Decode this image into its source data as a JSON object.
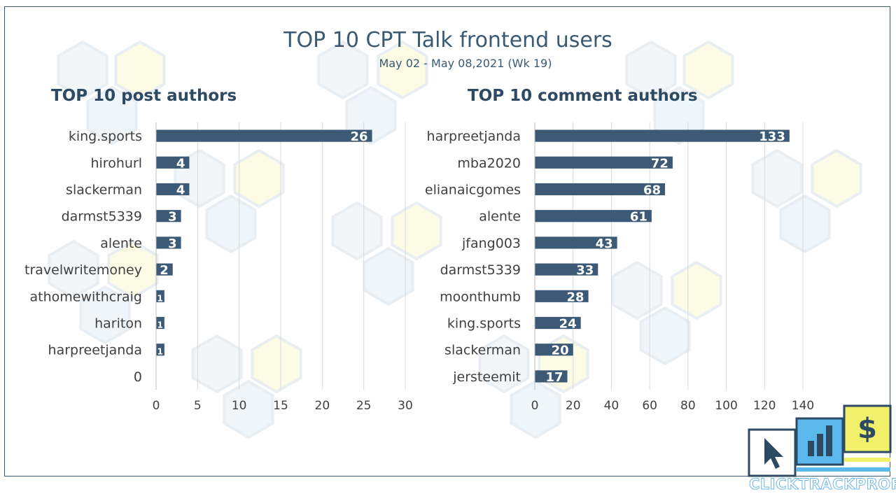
{
  "title": "TOP 10 CPT Talk frontend users",
  "subtitle": "May 02 - May 08,2021 (Wk 19)",
  "logo_text": "CLICKTRACKPROFIT",
  "colors": {
    "bar": "#3c5a75",
    "grid": "#d9d9d9",
    "text": "#404040",
    "title": "#3a5a74",
    "logo_blue": "#5bb8ec",
    "logo_yellow": "#f2ef6a"
  },
  "chart_data": [
    {
      "type": "bar",
      "orientation": "horizontal",
      "title": "TOP 10 post authors",
      "categories": [
        "king.sports",
        "hirohurl",
        "slackerman",
        "darmst5339",
        "alente",
        "travelwritemoney",
        "athomewithcraig",
        "hariton",
        "harpreetjanda",
        "0"
      ],
      "values": [
        26,
        4,
        4,
        3,
        3,
        2,
        1,
        1,
        1,
        0
      ],
      "data_labels": [
        "26",
        "4",
        "4",
        "3",
        "3",
        "2",
        "1",
        "1",
        "1",
        ""
      ],
      "xlim": [
        0,
        30
      ],
      "xticks": [
        0,
        5,
        10,
        15,
        20,
        25,
        30
      ],
      "grid": true
    },
    {
      "type": "bar",
      "orientation": "horizontal",
      "title": "TOP 10 comment authors",
      "categories": [
        "harpreetjanda",
        "mba2020",
        "elianaicgomes",
        "alente",
        "jfang003",
        "darmst5339",
        "moonthumb",
        "king.sports",
        "slackerman",
        "jersteemit"
      ],
      "values": [
        133,
        72,
        68,
        61,
        43,
        33,
        28,
        24,
        20,
        17
      ],
      "data_labels": [
        "133",
        "72",
        "68",
        "61",
        "43",
        "33",
        "28",
        "24",
        "20",
        "17"
      ],
      "xlim": [
        0,
        140
      ],
      "xticks": [
        0,
        20,
        40,
        60,
        80,
        100,
        120,
        140
      ],
      "grid": true
    }
  ]
}
